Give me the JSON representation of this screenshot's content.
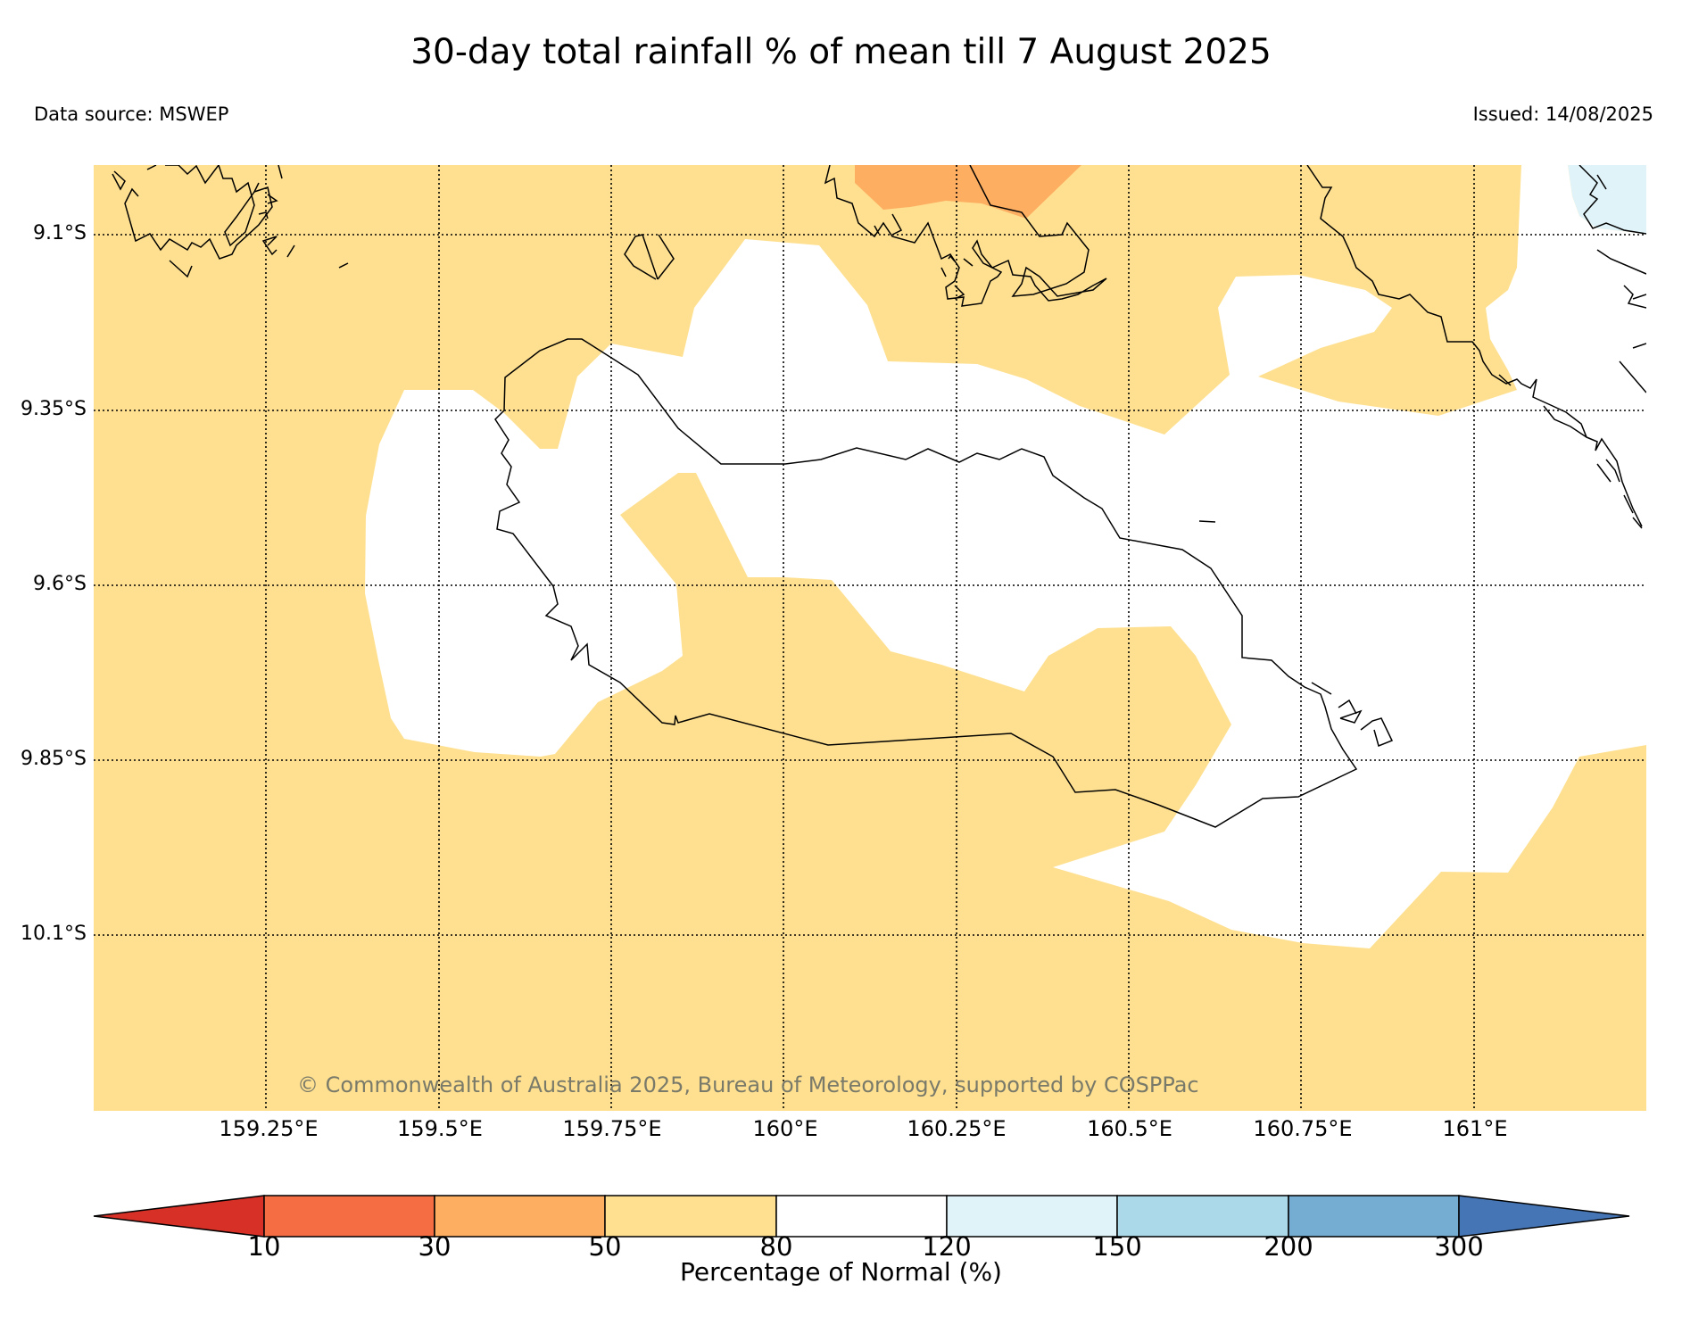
{
  "header": {
    "title": "30-day total rainfall % of mean till 7 August 2025",
    "data_source": "Data source: MSWEP",
    "issued": "Issued: 14/08/2025"
  },
  "map": {
    "lat_labels": [
      "9.1°S",
      "9.35°S",
      "9.6°S",
      "9.85°S",
      "10.1°S"
    ],
    "lon_labels": [
      "159.25°E",
      "159.5°E",
      "159.75°E",
      "160°E",
      "160.25°E",
      "160.5°E",
      "160.75°E",
      "161°E"
    ],
    "copyright": "© Commonwealth of Australia 2025, Bureau of Meteorology, supported by COSPPac"
  },
  "colorbar": {
    "label": "Percentage of Normal (%)",
    "ticks": [
      "10",
      "30",
      "50",
      "80",
      "120",
      "150",
      "200",
      "300"
    ],
    "bins": [
      {
        "range": "<10",
        "color": "#d73027"
      },
      {
        "range": "10-30",
        "color": "#f46d43"
      },
      {
        "range": "30-50",
        "color": "#fdae61"
      },
      {
        "range": "50-80",
        "color": "#fee090"
      },
      {
        "range": "80-120",
        "color": "#ffffff"
      },
      {
        "range": "120-150",
        "color": "#e0f3f8"
      },
      {
        "range": "150-200",
        "color": "#abd9e9"
      },
      {
        "range": "200-300",
        "color": "#74add1"
      },
      {
        "range": ">300",
        "color": "#4575b4"
      }
    ]
  }
}
